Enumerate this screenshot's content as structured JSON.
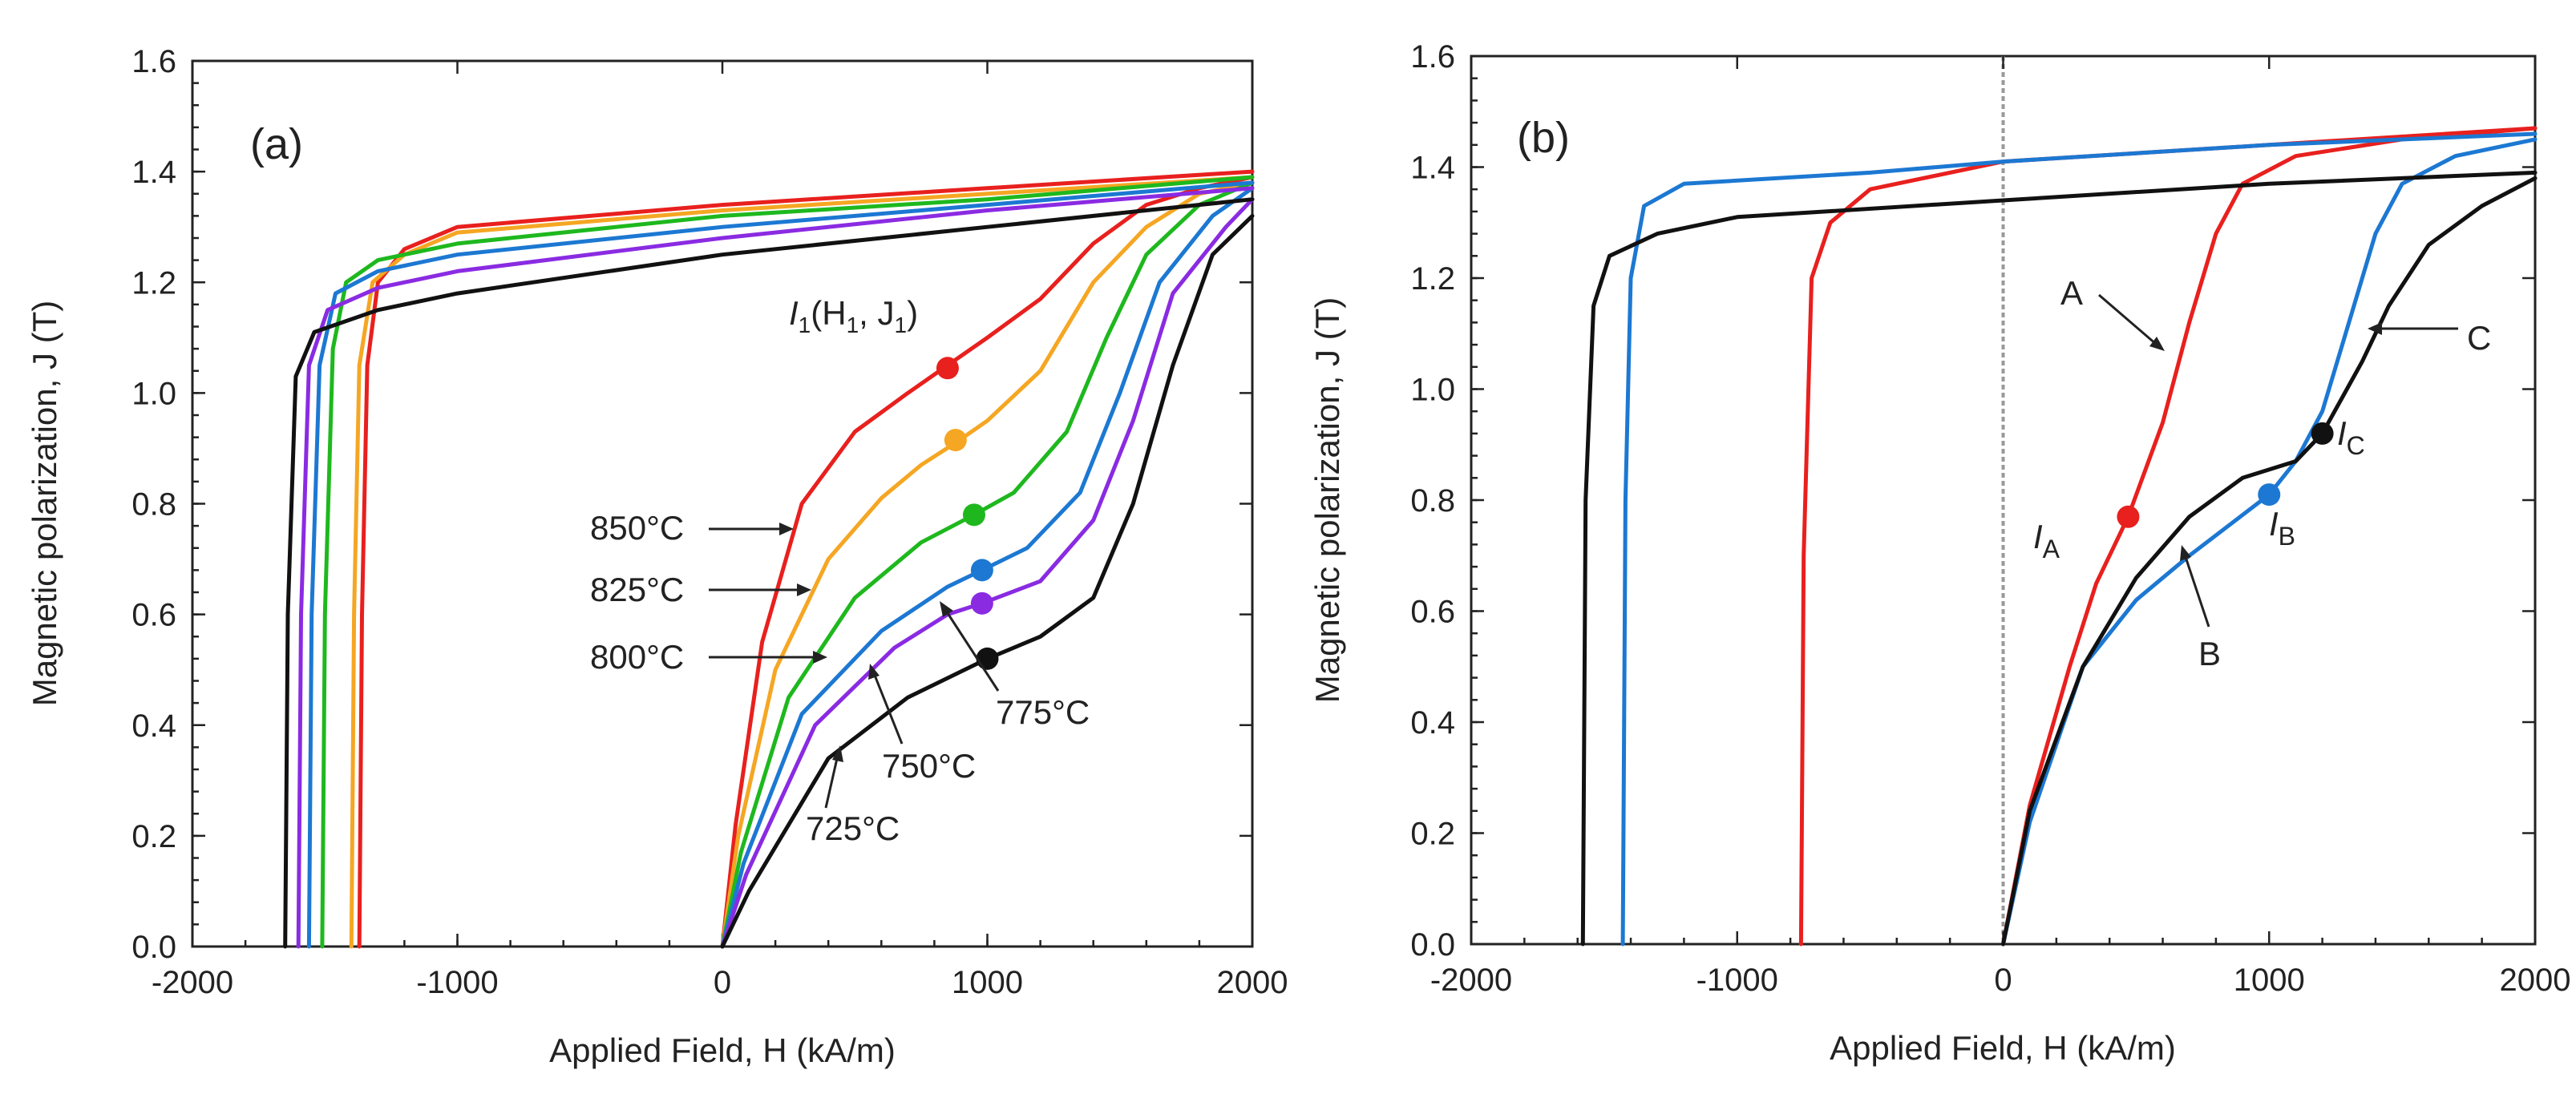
{
  "chart_data": [
    {
      "type": "line",
      "panel_label": "(a)",
      "xlabel": "Applied Field, H (kA/m)",
      "ylabel": "Magnetic polarization, J (T)",
      "xlim": [
        -2000,
        2000
      ],
      "ylim": [
        0,
        1.6
      ],
      "xticks": [
        -2000,
        -1000,
        0,
        1000,
        2000
      ],
      "xtick_labels": [
        "-2000",
        "-1000",
        "0",
        "1000",
        "2000"
      ],
      "yticks": [
        0,
        0.2,
        0.4,
        0.6,
        0.8,
        1.0,
        1.2,
        1.4,
        1.6
      ],
      "ytick_labels": [
        "0.0",
        "0.2",
        "0.4",
        "0.6",
        "0.8",
        "1.0",
        "1.2",
        "1.4",
        "1.6"
      ],
      "series": [
        {
          "name": "850°C",
          "color": "#e8201e",
          "branch_upper": [
            [
              -1370,
              0
            ],
            [
              -1360,
              0.6
            ],
            [
              -1340,
              1.05
            ],
            [
              -1300,
              1.2
            ],
            [
              -1200,
              1.26
            ],
            [
              -1000,
              1.3
            ],
            [
              0,
              1.34
            ],
            [
              1000,
              1.37
            ],
            [
              2000,
              1.4
            ]
          ],
          "branch_initial": [
            [
              0,
              0
            ],
            [
              50,
              0.22
            ],
            [
              150,
              0.55
            ],
            [
              300,
              0.8
            ],
            [
              500,
              0.93
            ],
            [
              700,
              1.0
            ],
            [
              850,
              1.05
            ],
            [
              1000,
              1.1
            ],
            [
              1200,
              1.17
            ],
            [
              1400,
              1.27
            ],
            [
              1600,
              1.34
            ],
            [
              1800,
              1.37
            ],
            [
              2000,
              1.39
            ]
          ],
          "marker": [
            850,
            1.045
          ]
        },
        {
          "name": "825°C",
          "color": "#f5a623",
          "branch_upper": [
            [
              -1400,
              0
            ],
            [
              -1390,
              0.6
            ],
            [
              -1370,
              1.05
            ],
            [
              -1320,
              1.2
            ],
            [
              -1200,
              1.25
            ],
            [
              -1000,
              1.29
            ],
            [
              0,
              1.33
            ],
            [
              1000,
              1.36
            ],
            [
              2000,
              1.39
            ]
          ],
          "branch_initial": [
            [
              0,
              0
            ],
            [
              60,
              0.2
            ],
            [
              200,
              0.5
            ],
            [
              400,
              0.7
            ],
            [
              600,
              0.81
            ],
            [
              750,
              0.87
            ],
            [
              880,
              0.91
            ],
            [
              1000,
              0.95
            ],
            [
              1200,
              1.04
            ],
            [
              1400,
              1.2
            ],
            [
              1600,
              1.3
            ],
            [
              1800,
              1.36
            ],
            [
              2000,
              1.38
            ]
          ],
          "marker": [
            880,
            0.915
          ]
        },
        {
          "name": "800°C",
          "color": "#1eb81e",
          "branch_upper": [
            [
              -1510,
              0
            ],
            [
              -1500,
              0.6
            ],
            [
              -1470,
              1.08
            ],
            [
              -1420,
              1.2
            ],
            [
              -1300,
              1.24
            ],
            [
              -1000,
              1.27
            ],
            [
              0,
              1.32
            ],
            [
              1000,
              1.35
            ],
            [
              2000,
              1.39
            ]
          ],
          "branch_initial": [
            [
              0,
              0
            ],
            [
              70,
              0.17
            ],
            [
              250,
              0.45
            ],
            [
              500,
              0.63
            ],
            [
              750,
              0.73
            ],
            [
              950,
              0.78
            ],
            [
              1100,
              0.82
            ],
            [
              1300,
              0.93
            ],
            [
              1450,
              1.1
            ],
            [
              1600,
              1.25
            ],
            [
              1800,
              1.34
            ],
            [
              2000,
              1.38
            ]
          ],
          "marker": [
            950,
            0.78
          ]
        },
        {
          "name": "775°C",
          "color": "#1c78d2",
          "branch_upper": [
            [
              -1560,
              0
            ],
            [
              -1550,
              0.6
            ],
            [
              -1520,
              1.05
            ],
            [
              -1460,
              1.18
            ],
            [
              -1300,
              1.22
            ],
            [
              -1000,
              1.25
            ],
            [
              0,
              1.3
            ],
            [
              1000,
              1.34
            ],
            [
              2000,
              1.38
            ]
          ],
          "branch_initial": [
            [
              0,
              0
            ],
            [
              80,
              0.15
            ],
            [
              300,
              0.42
            ],
            [
              600,
              0.57
            ],
            [
              850,
              0.65
            ],
            [
              980,
              0.68
            ],
            [
              1150,
              0.72
            ],
            [
              1350,
              0.82
            ],
            [
              1500,
              1.0
            ],
            [
              1650,
              1.2
            ],
            [
              1850,
              1.32
            ],
            [
              2000,
              1.37
            ]
          ],
          "marker": [
            980,
            0.68
          ]
        },
        {
          "name": "750°C",
          "color": "#8a2be2",
          "branch_upper": [
            [
              -1600,
              0
            ],
            [
              -1590,
              0.6
            ],
            [
              -1560,
              1.05
            ],
            [
              -1490,
              1.15
            ],
            [
              -1300,
              1.19
            ],
            [
              -1000,
              1.22
            ],
            [
              0,
              1.28
            ],
            [
              1000,
              1.33
            ],
            [
              2000,
              1.37
            ]
          ],
          "branch_initial": [
            [
              0,
              0
            ],
            [
              90,
              0.13
            ],
            [
              350,
              0.4
            ],
            [
              650,
              0.54
            ],
            [
              850,
              0.6
            ],
            [
              980,
              0.62
            ],
            [
              1200,
              0.66
            ],
            [
              1400,
              0.77
            ],
            [
              1550,
              0.95
            ],
            [
              1700,
              1.18
            ],
            [
              1900,
              1.3
            ],
            [
              2000,
              1.35
            ]
          ],
          "marker": [
            980,
            0.62
          ]
        },
        {
          "name": "725°C",
          "color": "#111111",
          "branch_upper": [
            [
              -1650,
              0
            ],
            [
              -1640,
              0.6
            ],
            [
              -1610,
              1.03
            ],
            [
              -1540,
              1.11
            ],
            [
              -1300,
              1.15
            ],
            [
              -1000,
              1.18
            ],
            [
              0,
              1.25
            ],
            [
              1000,
              1.3
            ],
            [
              2000,
              1.35
            ]
          ],
          "branch_initial": [
            [
              0,
              0
            ],
            [
              100,
              0.1
            ],
            [
              400,
              0.34
            ],
            [
              700,
              0.45
            ],
            [
              1000,
              0.52
            ],
            [
              1200,
              0.56
            ],
            [
              1400,
              0.63
            ],
            [
              1550,
              0.8
            ],
            [
              1700,
              1.05
            ],
            [
              1850,
              1.25
            ],
            [
              2000,
              1.32
            ]
          ],
          "marker": [
            1000,
            0.52
          ]
        }
      ],
      "annotations": [
        {
          "text": "I1(H1, J1)",
          "main": "I",
          "sub1": "1",
          "mid": "(H",
          "sub2": "1",
          "mid2": ", J",
          "sub3": "1",
          "end": ")"
        },
        {
          "text": "850°C"
        },
        {
          "text": "825°C"
        },
        {
          "text": "800°C"
        },
        {
          "text": "775°C"
        },
        {
          "text": "750°C"
        },
        {
          "text": "725°C"
        }
      ]
    },
    {
      "type": "line",
      "panel_label": "(b)",
      "xlabel": "Applied Field, H (kA/m)",
      "ylabel": "Magnetic polarization, J (T)",
      "xlim": [
        -2000,
        2000
      ],
      "ylim": [
        0,
        1.6
      ],
      "xticks": [
        -2000,
        -1000,
        0,
        1000,
        2000
      ],
      "xtick_labels": [
        "-2000",
        "-1000",
        "0",
        "1000",
        "2000"
      ],
      "yticks": [
        0,
        0.2,
        0.4,
        0.6,
        0.8,
        1.0,
        1.2,
        1.4,
        1.6
      ],
      "ytick_labels": [
        "0.0",
        "0.2",
        "0.4",
        "0.6",
        "0.8",
        "1.0",
        "1.2",
        "1.4",
        "1.6"
      ],
      "series": [
        {
          "name": "A",
          "color": "#e8201e",
          "branch_upper": [
            [
              -760,
              0
            ],
            [
              -750,
              0.7
            ],
            [
              -720,
              1.2
            ],
            [
              -650,
              1.3
            ],
            [
              -500,
              1.36
            ],
            [
              0,
              1.41
            ],
            [
              1000,
              1.44
            ],
            [
              2000,
              1.47
            ]
          ],
          "branch_initial": [
            [
              0,
              0
            ],
            [
              100,
              0.25
            ],
            [
              250,
              0.5
            ],
            [
              350,
              0.65
            ],
            [
              470,
              0.77
            ],
            [
              600,
              0.94
            ],
            [
              700,
              1.12
            ],
            [
              800,
              1.28
            ],
            [
              900,
              1.37
            ],
            [
              1100,
              1.42
            ],
            [
              1500,
              1.45
            ],
            [
              2000,
              1.47
            ]
          ],
          "marker": [
            470,
            0.77
          ],
          "marker_label": "I",
          "marker_sub": "A"
        },
        {
          "name": "B",
          "color": "#1c78d2",
          "branch_upper": [
            [
              -1430,
              0
            ],
            [
              -1420,
              0.8
            ],
            [
              -1400,
              1.2
            ],
            [
              -1350,
              1.33
            ],
            [
              -1200,
              1.37
            ],
            [
              -500,
              1.39
            ],
            [
              0,
              1.41
            ],
            [
              1000,
              1.44
            ],
            [
              2000,
              1.46
            ]
          ],
          "branch_initial": [
            [
              0,
              0
            ],
            [
              100,
              0.22
            ],
            [
              300,
              0.5
            ],
            [
              500,
              0.62
            ],
            [
              700,
              0.7
            ],
            [
              1000,
              0.81
            ],
            [
              1100,
              0.87
            ],
            [
              1200,
              0.96
            ],
            [
              1300,
              1.12
            ],
            [
              1400,
              1.28
            ],
            [
              1500,
              1.37
            ],
            [
              1700,
              1.42
            ],
            [
              2000,
              1.45
            ]
          ],
          "marker": [
            1000,
            0.81
          ],
          "marker_label": "I",
          "marker_sub": "B"
        },
        {
          "name": "C",
          "color": "#111111",
          "branch_upper": [
            [
              -1580,
              0
            ],
            [
              -1570,
              0.8
            ],
            [
              -1540,
              1.15
            ],
            [
              -1480,
              1.24
            ],
            [
              -1300,
              1.28
            ],
            [
              -1000,
              1.31
            ],
            [
              0,
              1.34
            ],
            [
              1000,
              1.37
            ],
            [
              2000,
              1.39
            ]
          ],
          "branch_initial": [
            [
              0,
              0
            ],
            [
              100,
              0.24
            ],
            [
              300,
              0.5
            ],
            [
              500,
              0.66
            ],
            [
              700,
              0.77
            ],
            [
              900,
              0.84
            ],
            [
              1100,
              0.87
            ],
            [
              1200,
              0.92
            ],
            [
              1350,
              1.05
            ],
            [
              1450,
              1.15
            ],
            [
              1600,
              1.26
            ],
            [
              1800,
              1.33
            ],
            [
              2000,
              1.38
            ]
          ],
          "marker": [
            1200,
            0.92
          ],
          "marker_label": "I",
          "marker_sub": "C"
        }
      ],
      "annotations": [
        {
          "text": "A"
        },
        {
          "text": "B"
        },
        {
          "text": "C"
        }
      ]
    }
  ]
}
